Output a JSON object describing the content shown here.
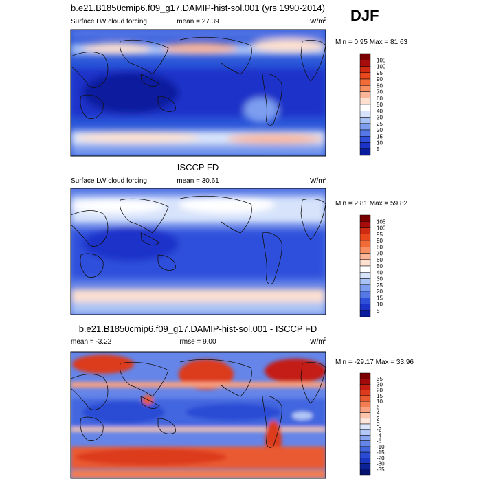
{
  "season": "DJF",
  "colors": {
    "land_line": "#111111",
    "frame": "#000000",
    "ocean_base": "#2a55d8"
  },
  "chart_data": [
    {
      "type": "heatmap",
      "title": "b.e21.B1850cmip6.f09_g17.DAMIP-hist-sol.001 (yrs 1990-2014)",
      "left_label": "Surface LW cloud forcing",
      "center_label": "mean =  27.39",
      "units": "W/m",
      "units_sup": "2",
      "minmax": "Min =   0.95 Max =  81.63",
      "colorbar": {
        "labels": [
          "105",
          "100",
          "95",
          "90",
          "80",
          "70",
          "60",
          "50",
          "40",
          "30",
          "25",
          "20",
          "15",
          "10",
          "5"
        ],
        "colors": [
          "#7a0000",
          "#a80c0c",
          "#cf2a12",
          "#e8481c",
          "#f26a36",
          "#f88f62",
          "#fbb699",
          "#fde0d0",
          "#ffffff",
          "#d7e3fb",
          "#a9c2f5",
          "#7d9eef",
          "#5678e6",
          "#2f4fdb",
          "#1b33c9",
          "#0a1c9e"
        ]
      }
    },
    {
      "type": "heatmap",
      "title": "ISCCP FD",
      "left_label": "Surface LW cloud forcing",
      "center_label": "mean =  30.61",
      "units": "W/m",
      "units_sup": "2",
      "minmax": "Min =   2.81 Max =  59.82",
      "colorbar": {
        "labels": [
          "105",
          "100",
          "95",
          "90",
          "80",
          "70",
          "60",
          "50",
          "40",
          "30",
          "25",
          "20",
          "15",
          "10",
          "5"
        ],
        "colors": [
          "#7a0000",
          "#a80c0c",
          "#cf2a12",
          "#e8481c",
          "#f26a36",
          "#f88f62",
          "#fbb699",
          "#fde0d0",
          "#ffffff",
          "#d7e3fb",
          "#a9c2f5",
          "#7d9eef",
          "#5678e6",
          "#2f4fdb",
          "#1b33c9",
          "#0a1c9e"
        ]
      }
    },
    {
      "type": "heatmap",
      "title": "b.e21.B1850cmip6.f09_g17.DAMIP-hist-sol.001 - ISCCP FD",
      "left_label": "mean =  -3.22",
      "center_label": "rmse =   9.00",
      "units": "W/m",
      "units_sup": "2",
      "minmax": "Min = -29.17 Max =  33.96",
      "colorbar": {
        "labels": [
          "35",
          "30",
          "20",
          "15",
          "10",
          "6",
          "4",
          "2",
          "0",
          "-2",
          "-4",
          "-6",
          "-10",
          "-15",
          "-20",
          "-30",
          "-35"
        ],
        "colors": [
          "#7a0000",
          "#a10a0a",
          "#c41e12",
          "#dc3a1c",
          "#ea5a30",
          "#f37d52",
          "#f9a080",
          "#fcc4ac",
          "#fde6da",
          "#dce6fb",
          "#b3c8f6",
          "#8aa6f0",
          "#6585e8",
          "#4366df",
          "#2a4bd4",
          "#1a35bf",
          "#0e2298",
          "#061470"
        ]
      }
    }
  ]
}
